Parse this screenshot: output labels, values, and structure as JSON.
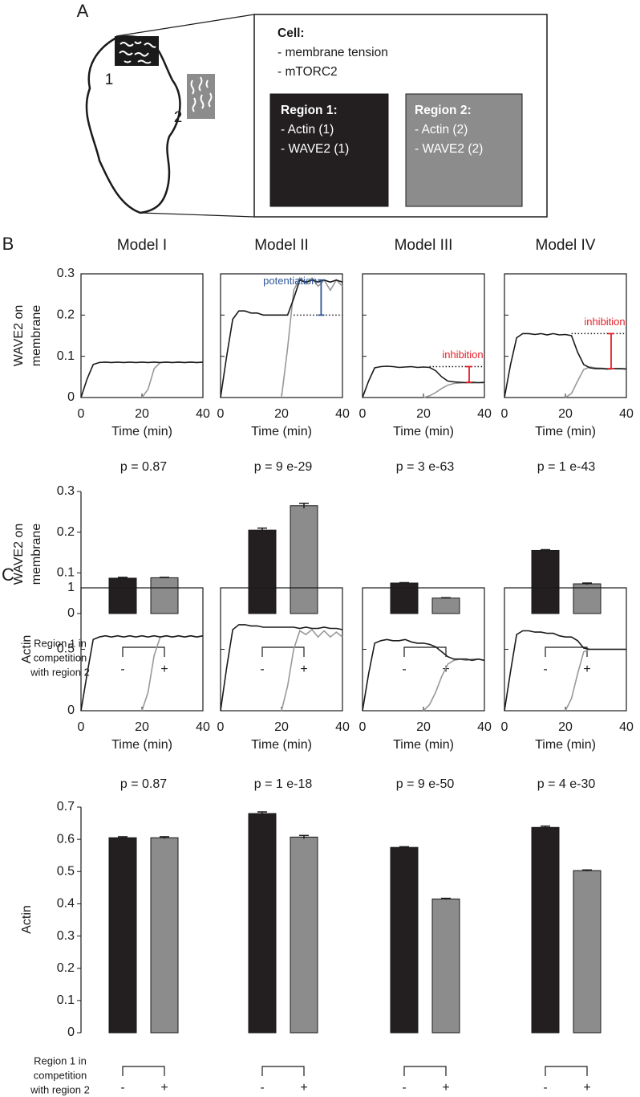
{
  "panel_labels": [
    "A",
    "B",
    "C"
  ],
  "diagram": {
    "region_markers": [
      "1",
      "2"
    ],
    "cell": {
      "title": "Cell:",
      "items": [
        "- membrane tension",
        "- mTORC2"
      ]
    },
    "regions": [
      {
        "title": "Region 1:",
        "items": [
          "- Actin (1)",
          "- WAVE2 (1)"
        ]
      },
      {
        "title": "Region 2:",
        "items": [
          "- Actin (2)",
          "- WAVE2 (2)"
        ]
      }
    ]
  },
  "chart_data": [
    {
      "type": "line",
      "title": "Model I",
      "ylabel_lines": [
        "WAVE2 on",
        "membrane"
      ],
      "xlabel": "Time (min)",
      "x": [
        0,
        2,
        4,
        6,
        8,
        10,
        12,
        14,
        16,
        18,
        20,
        22,
        24,
        26,
        28,
        30,
        32,
        34,
        36,
        38,
        40
      ],
      "xlim": [
        0,
        40
      ],
      "xticks": [
        0,
        20,
        40
      ],
      "ylim": [
        0,
        0.3
      ],
      "yticks": [
        0,
        0.1,
        0.2,
        0.3
      ],
      "series": [
        {
          "color": "#1a1a1a",
          "values": [
            0,
            0.045,
            0.08,
            0.085,
            0.086,
            0.085,
            0.086,
            0.085,
            0.086,
            0.085,
            0.086,
            0.085,
            0.086,
            0.085,
            0.086,
            0.085,
            0.086,
            0.085,
            0.086,
            0.085,
            0.086
          ]
        },
        {
          "color": "#999999",
          "values": [
            null,
            null,
            null,
            null,
            null,
            null,
            null,
            null,
            null,
            null,
            0,
            0.02,
            0.07,
            0.085,
            0.086,
            0.085,
            0.086,
            0.085,
            0.086,
            0.085,
            0.086
          ]
        }
      ]
    },
    {
      "type": "line",
      "title": "Model II",
      "xlabel": "Time (min)",
      "x": [
        0,
        2,
        4,
        6,
        8,
        10,
        12,
        14,
        16,
        18,
        20,
        22,
        24,
        26,
        28,
        30,
        32,
        34,
        36,
        38,
        40
      ],
      "xlim": [
        0,
        40
      ],
      "xticks": [
        0,
        20,
        40
      ],
      "ylim": [
        0,
        0.3
      ],
      "yticks": [
        0,
        0.1,
        0.2,
        0.3
      ],
      "series": [
        {
          "color": "#1a1a1a",
          "values": [
            0,
            0.1,
            0.19,
            0.21,
            0.21,
            0.205,
            0.205,
            0.2,
            0.2,
            0.2,
            0.2,
            0.2,
            0.24,
            0.285,
            0.28,
            0.285,
            0.28,
            0.285,
            0.28,
            0.285,
            0.28
          ]
        },
        {
          "color": "#999999",
          "values": [
            null,
            null,
            null,
            null,
            null,
            null,
            null,
            null,
            null,
            null,
            0,
            0.12,
            0.26,
            0.29,
            0.275,
            0.29,
            0.27,
            0.285,
            0.26,
            0.285,
            0.27
          ]
        }
      ],
      "reference": {
        "y": 0.2,
        "x": [
          24,
          40
        ]
      },
      "annotation": {
        "text": "potentiation",
        "color": "#2e5597",
        "x": 33,
        "from": 0.2,
        "to": 0.285
      }
    },
    {
      "type": "line",
      "title": "Model III",
      "xlabel": "Time (min)",
      "x": [
        0,
        2,
        4,
        6,
        8,
        10,
        12,
        14,
        16,
        18,
        20,
        22,
        24,
        26,
        28,
        30,
        32,
        34,
        36,
        38,
        40
      ],
      "xlim": [
        0,
        40
      ],
      "xticks": [
        0,
        20,
        40
      ],
      "ylim": [
        0,
        0.3
      ],
      "yticks": [
        0,
        0.1,
        0.2,
        0.3
      ],
      "series": [
        {
          "color": "#1a1a1a",
          "values": [
            0,
            0.04,
            0.072,
            0.075,
            0.076,
            0.075,
            0.073,
            0.074,
            0.075,
            0.073,
            0.074,
            0.073,
            0.065,
            0.05,
            0.04,
            0.038,
            0.037,
            0.036,
            0.037,
            0.036,
            0.037
          ]
        },
        {
          "color": "#999999",
          "values": [
            null,
            null,
            null,
            null,
            null,
            null,
            null,
            null,
            null,
            null,
            0,
            0.004,
            0.012,
            0.022,
            0.03,
            0.034,
            0.035,
            0.036,
            0.035,
            0.036,
            0.035
          ]
        }
      ],
      "reference": {
        "y": 0.075,
        "x": [
          22,
          40
        ]
      },
      "annotation": {
        "text": "inhibition",
        "color": "#e4202a",
        "x": 35,
        "from": 0.075,
        "to": 0.037
      }
    },
    {
      "type": "line",
      "title": "Model IV",
      "xlabel": "Time (min)",
      "x": [
        0,
        2,
        4,
        6,
        8,
        10,
        12,
        14,
        16,
        18,
        20,
        22,
        24,
        26,
        28,
        30,
        32,
        34,
        36,
        38,
        40
      ],
      "xlim": [
        0,
        40
      ],
      "xticks": [
        0,
        20,
        40
      ],
      "ylim": [
        0,
        0.3
      ],
      "yticks": [
        0,
        0.1,
        0.2,
        0.3
      ],
      "series": [
        {
          "color": "#1a1a1a",
          "values": [
            0,
            0.08,
            0.145,
            0.155,
            0.155,
            0.153,
            0.155,
            0.152,
            0.155,
            0.152,
            0.153,
            0.15,
            0.11,
            0.08,
            0.072,
            0.07,
            0.07,
            0.069,
            0.07,
            0.07,
            0.069
          ]
        },
        {
          "color": "#999999",
          "values": [
            null,
            null,
            null,
            null,
            null,
            null,
            null,
            null,
            null,
            null,
            0,
            0.01,
            0.04,
            0.068,
            0.074,
            0.072,
            0.071,
            0.07,
            0.07,
            0.07,
            0.07
          ]
        }
      ],
      "reference": {
        "y": 0.155,
        "x": [
          22,
          40
        ]
      },
      "annotation": {
        "text": "inhibition",
        "color": "#e4202a",
        "x": 35,
        "from": 0.155,
        "to": 0.07
      }
    },
    {
      "type": "bar",
      "ylabel_lines": [
        "WAVE2 on",
        "membrane"
      ],
      "ylim": [
        0,
        0.3
      ],
      "yticks": [
        0,
        0.1,
        0.2,
        0.3
      ],
      "categories": [
        "-",
        "+"
      ],
      "colors": [
        "#231f20",
        "#8c8c8c"
      ],
      "xlabel_lines": [
        "Region 1 in",
        "competition",
        "with region 2"
      ],
      "groups": [
        {
          "title": "p = 0.87",
          "values": [
            0.087,
            0.088
          ],
          "errors": [
            0.002,
            0.001
          ]
        },
        {
          "title": "p = 9 e-29",
          "values": [
            0.205,
            0.265
          ],
          "errors": [
            0.005,
            0.006
          ]
        },
        {
          "title": "p = 3 e-63",
          "values": [
            0.075,
            0.038
          ],
          "errors": [
            0.001,
            0.001
          ]
        },
        {
          "title": "p = 1 e-43",
          "values": [
            0.155,
            0.073
          ],
          "errors": [
            0.002,
            0.002
          ]
        }
      ]
    },
    {
      "type": "line",
      "ylabel_lines": [
        "Actin"
      ],
      "xlabel": "Time (min)",
      "x": [
        0,
        2,
        4,
        6,
        8,
        10,
        12,
        14,
        16,
        18,
        20,
        22,
        24,
        26,
        28,
        30,
        32,
        34,
        36,
        38,
        40
      ],
      "xlim": [
        0,
        40
      ],
      "xticks": [
        0,
        20,
        40
      ],
      "ylim": [
        0,
        1
      ],
      "yticks": [
        0,
        0.5,
        1
      ],
      "series": [
        {
          "color": "#1a1a1a",
          "values": [
            0,
            0.3,
            0.58,
            0.6,
            0.61,
            0.6,
            0.61,
            0.6,
            0.61,
            0.6,
            0.61,
            0.6,
            0.61,
            0.6,
            0.61,
            0.6,
            0.61,
            0.6,
            0.61,
            0.6,
            0.61
          ]
        },
        {
          "color": "#999999",
          "values": [
            null,
            null,
            null,
            null,
            null,
            null,
            null,
            null,
            null,
            null,
            0,
            0.15,
            0.45,
            0.6,
            0.61,
            0.6,
            0.61,
            0.6,
            0.61,
            0.6,
            0.61
          ]
        }
      ]
    },
    {
      "type": "line",
      "xlabel": "Time (min)",
      "x": [
        0,
        2,
        4,
        6,
        8,
        10,
        12,
        14,
        16,
        18,
        20,
        22,
        24,
        26,
        28,
        30,
        32,
        34,
        36,
        38,
        40
      ],
      "xlim": [
        0,
        40
      ],
      "xticks": [
        0,
        20,
        40
      ],
      "ylim": [
        0,
        1
      ],
      "yticks": [
        0,
        0.5,
        1
      ],
      "series": [
        {
          "color": "#1a1a1a",
          "values": [
            0,
            0.35,
            0.66,
            0.7,
            0.7,
            0.69,
            0.69,
            0.68,
            0.68,
            0.68,
            0.68,
            0.68,
            0.68,
            0.67,
            0.68,
            0.67,
            0.67,
            0.68,
            0.67,
            0.67,
            0.66
          ]
        },
        {
          "color": "#999999",
          "values": [
            null,
            null,
            null,
            null,
            null,
            null,
            null,
            null,
            null,
            null,
            0,
            0.2,
            0.5,
            0.65,
            0.62,
            0.66,
            0.6,
            0.65,
            0.6,
            0.64,
            0.6
          ]
        }
      ]
    },
    {
      "type": "line",
      "xlabel": "Time (min)",
      "x": [
        0,
        2,
        4,
        6,
        8,
        10,
        12,
        14,
        16,
        18,
        20,
        22,
        24,
        26,
        28,
        30,
        32,
        34,
        36,
        38,
        40
      ],
      "xlim": [
        0,
        40
      ],
      "xticks": [
        0,
        20,
        40
      ],
      "ylim": [
        0,
        1
      ],
      "yticks": [
        0,
        0.5,
        1
      ],
      "series": [
        {
          "color": "#1a1a1a",
          "values": [
            0,
            0.3,
            0.55,
            0.57,
            0.58,
            0.57,
            0.57,
            0.58,
            0.56,
            0.55,
            0.55,
            0.54,
            0.52,
            0.48,
            0.44,
            0.42,
            0.42,
            0.42,
            0.41,
            0.42,
            0.41
          ]
        },
        {
          "color": "#999999",
          "values": [
            null,
            null,
            null,
            null,
            null,
            null,
            null,
            null,
            null,
            null,
            0,
            0.05,
            0.15,
            0.28,
            0.38,
            0.41,
            0.42,
            0.41,
            0.42,
            0.42,
            0.41
          ]
        }
      ]
    },
    {
      "type": "line",
      "xlabel": "Time (min)",
      "x": [
        0,
        2,
        4,
        6,
        8,
        10,
        12,
        14,
        16,
        18,
        20,
        22,
        24,
        26,
        28,
        30,
        32,
        34,
        36,
        38,
        40
      ],
      "xlim": [
        0,
        40
      ],
      "xticks": [
        0,
        20,
        40
      ],
      "ylim": [
        0,
        1
      ],
      "yticks": [
        0,
        0.5,
        1
      ],
      "series": [
        {
          "color": "#1a1a1a",
          "values": [
            0,
            0.32,
            0.62,
            0.65,
            0.65,
            0.64,
            0.64,
            0.63,
            0.63,
            0.61,
            0.6,
            0.6,
            0.57,
            0.51,
            0.5,
            0.5,
            0.5,
            0.5,
            0.5,
            0.5,
            0.5
          ]
        },
        {
          "color": "#999999",
          "values": [
            null,
            null,
            null,
            null,
            null,
            null,
            null,
            null,
            null,
            null,
            0,
            0.1,
            0.3,
            0.48,
            0.5,
            0.5,
            0.5,
            0.5,
            0.5,
            0.5,
            0.5
          ]
        }
      ]
    },
    {
      "type": "bar",
      "ylabel_lines": [
        "Actin"
      ],
      "ylim": [
        0,
        0.7
      ],
      "yticks": [
        0,
        0.1,
        0.2,
        0.3,
        0.4,
        0.5,
        0.6,
        0.7
      ],
      "categories": [
        "-",
        "+"
      ],
      "colors": [
        "#231f20",
        "#8c8c8c"
      ],
      "xlabel_lines": [
        "Region 1 in",
        "competition",
        "with region 2"
      ],
      "groups": [
        {
          "title": "p = 0.87",
          "values": [
            0.605,
            0.605
          ],
          "errors": [
            0.003,
            0.003
          ]
        },
        {
          "title": "p = 1 e-18",
          "values": [
            0.68,
            0.607
          ],
          "errors": [
            0.005,
            0.005
          ]
        },
        {
          "title": "p = 9 e-50",
          "values": [
            0.575,
            0.415
          ],
          "errors": [
            0.002,
            0.002
          ]
        },
        {
          "title": "p = 4 e-30",
          "values": [
            0.637,
            0.503
          ],
          "errors": [
            0.004,
            0.002
          ]
        }
      ]
    }
  ]
}
